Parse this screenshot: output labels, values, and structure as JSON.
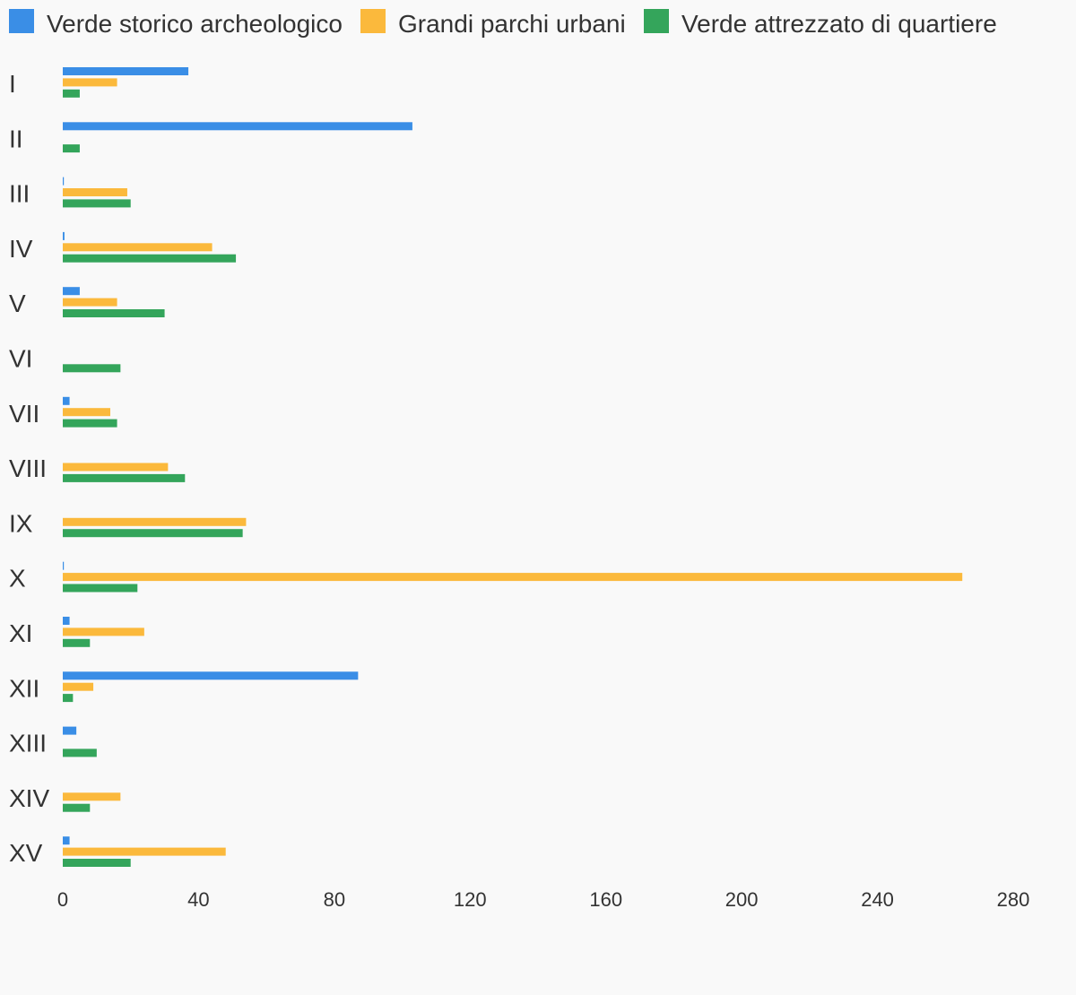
{
  "chart_data": {
    "type": "bar",
    "orientation": "horizontal",
    "categories": [
      "I",
      "II",
      "III",
      "IV",
      "V",
      "VI",
      "VII",
      "VIII",
      "IX",
      "X",
      "XI",
      "XII",
      "XIII",
      "XIV",
      "XV"
    ],
    "series": [
      {
        "name": "Verde storico archeologico",
        "color": "#3a8ee6",
        "values": [
          37,
          103,
          0.3,
          0.5,
          5,
          0,
          2,
          0,
          0,
          0.2,
          2,
          87,
          4,
          0,
          2
        ]
      },
      {
        "name": "Grandi parchi urbani",
        "color": "#fbb93c",
        "values": [
          16,
          0,
          19,
          44,
          16,
          0,
          14,
          31,
          54,
          265,
          24,
          9,
          0,
          17,
          48
        ]
      },
      {
        "name": "Verde attrezzato di quartiere",
        "color": "#34a55b",
        "values": [
          5,
          5,
          20,
          51,
          30,
          17,
          16,
          36,
          53,
          22,
          8,
          3,
          10,
          8,
          20
        ]
      }
    ],
    "xlim": [
      0,
      280
    ],
    "xticks": [
      "0",
      "40",
      "80",
      "120",
      "160",
      "200",
      "240",
      "280"
    ],
    "grid": false,
    "legend_position": "top-left",
    "title": "",
    "xlabel": "",
    "ylabel": ""
  }
}
